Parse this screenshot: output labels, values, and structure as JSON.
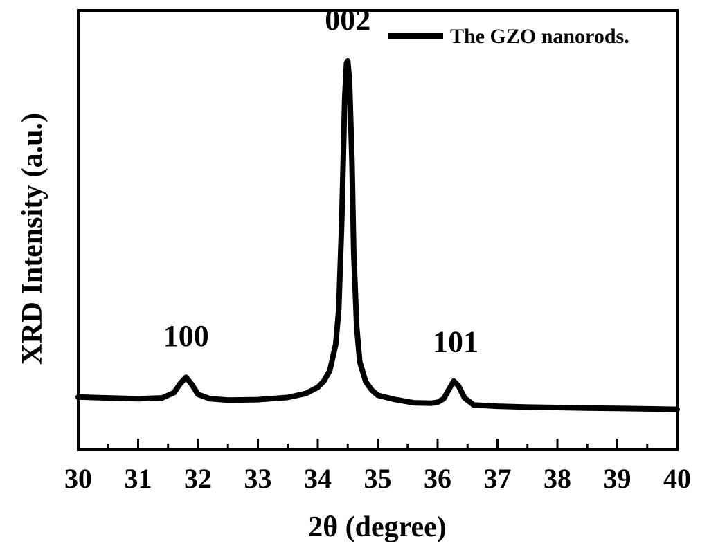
{
  "chart_data": {
    "type": "line",
    "title": "",
    "xlabel": "2θ (degree)",
    "ylabel": "XRD Intensity (a.u.)",
    "xlim": [
      30,
      40
    ],
    "ylim": [
      0,
      100
    ],
    "x_ticks": [
      "30",
      "31",
      "32",
      "33",
      "34",
      "35",
      "36",
      "37",
      "38",
      "39",
      "40"
    ],
    "y_ticks_shown": false,
    "grid": false,
    "legend": {
      "position": "top-right"
    },
    "series": [
      {
        "name": "The GZO nanorods.",
        "color": "#000000",
        "points": [
          [
            30.0,
            12.0
          ],
          [
            30.5,
            11.8
          ],
          [
            31.0,
            11.6
          ],
          [
            31.4,
            11.8
          ],
          [
            31.6,
            13.0
          ],
          [
            31.7,
            15.0
          ],
          [
            31.8,
            16.5
          ],
          [
            31.9,
            14.8
          ],
          [
            32.0,
            12.6
          ],
          [
            32.2,
            11.6
          ],
          [
            32.5,
            11.3
          ],
          [
            33.0,
            11.4
          ],
          [
            33.5,
            11.9
          ],
          [
            33.8,
            12.8
          ],
          [
            34.0,
            14.2
          ],
          [
            34.1,
            15.6
          ],
          [
            34.2,
            18.0
          ],
          [
            34.3,
            24.0
          ],
          [
            34.35,
            32.0
          ],
          [
            34.4,
            52.0
          ],
          [
            34.45,
            80.0
          ],
          [
            34.48,
            88.0
          ],
          [
            34.5,
            88.5
          ],
          [
            34.53,
            84.0
          ],
          [
            34.57,
            66.0
          ],
          [
            34.6,
            45.0
          ],
          [
            34.65,
            28.0
          ],
          [
            34.7,
            20.0
          ],
          [
            34.8,
            15.5
          ],
          [
            34.9,
            13.6
          ],
          [
            35.0,
            12.4
          ],
          [
            35.3,
            11.4
          ],
          [
            35.6,
            10.7
          ],
          [
            35.9,
            10.6
          ],
          [
            36.0,
            10.8
          ],
          [
            36.1,
            11.6
          ],
          [
            36.2,
            14.0
          ],
          [
            36.27,
            15.6
          ],
          [
            36.35,
            14.5
          ],
          [
            36.45,
            11.8
          ],
          [
            36.6,
            10.2
          ],
          [
            37.0,
            9.9
          ],
          [
            37.5,
            9.7
          ],
          [
            38.0,
            9.6
          ],
          [
            38.5,
            9.5
          ],
          [
            39.0,
            9.4
          ],
          [
            39.5,
            9.3
          ],
          [
            40.0,
            9.2
          ]
        ]
      }
    ],
    "annotations": [
      {
        "text": "100",
        "x": 31.8
      },
      {
        "text": "002",
        "x": 34.5
      },
      {
        "text": "101",
        "x": 36.3
      }
    ]
  }
}
